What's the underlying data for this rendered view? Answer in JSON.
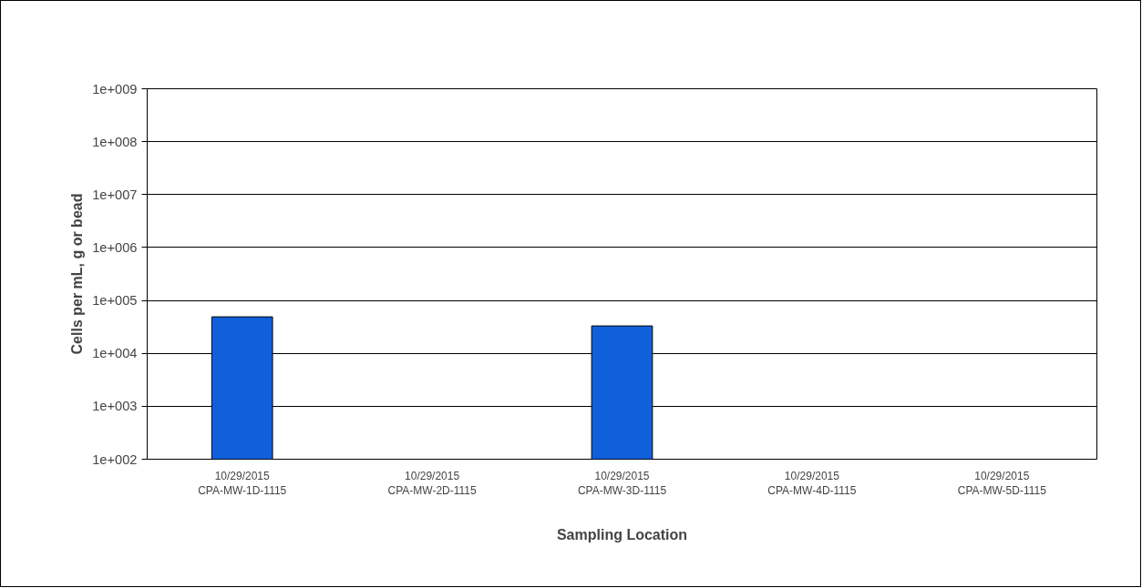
{
  "chart_data": {
    "type": "bar",
    "xlabel": "Sampling Location",
    "ylabel": "Cells per mL, g or bead",
    "categories": [
      "10/29/2015\nCPA-MW-1D-1115",
      "10/29/2015\nCPA-MW-2D-1115",
      "10/29/2015\nCPA-MW-3D-1115",
      "10/29/2015\nCPA-MW-4D-1115",
      "10/29/2015\nCPA-MW-5D-1115"
    ],
    "values": [
      49000,
      null,
      33000,
      null,
      null
    ],
    "color": "#1060dc",
    "log": true,
    "ylim": [
      100,
      1000000000
    ],
    "yticks": [
      {
        "value": 100,
        "label": "1e+002"
      },
      {
        "value": 1000,
        "label": "1e+003"
      },
      {
        "value": 10000,
        "label": "1e+004"
      },
      {
        "value": 100000,
        "label": "1e+005"
      },
      {
        "value": 1000000,
        "label": "1e+006"
      },
      {
        "value": 10000000,
        "label": "1e+007"
      },
      {
        "value": 100000000,
        "label": "1e+008"
      },
      {
        "value": 1000000000,
        "label": "1e+009"
      }
    ],
    "grid": "y"
  }
}
